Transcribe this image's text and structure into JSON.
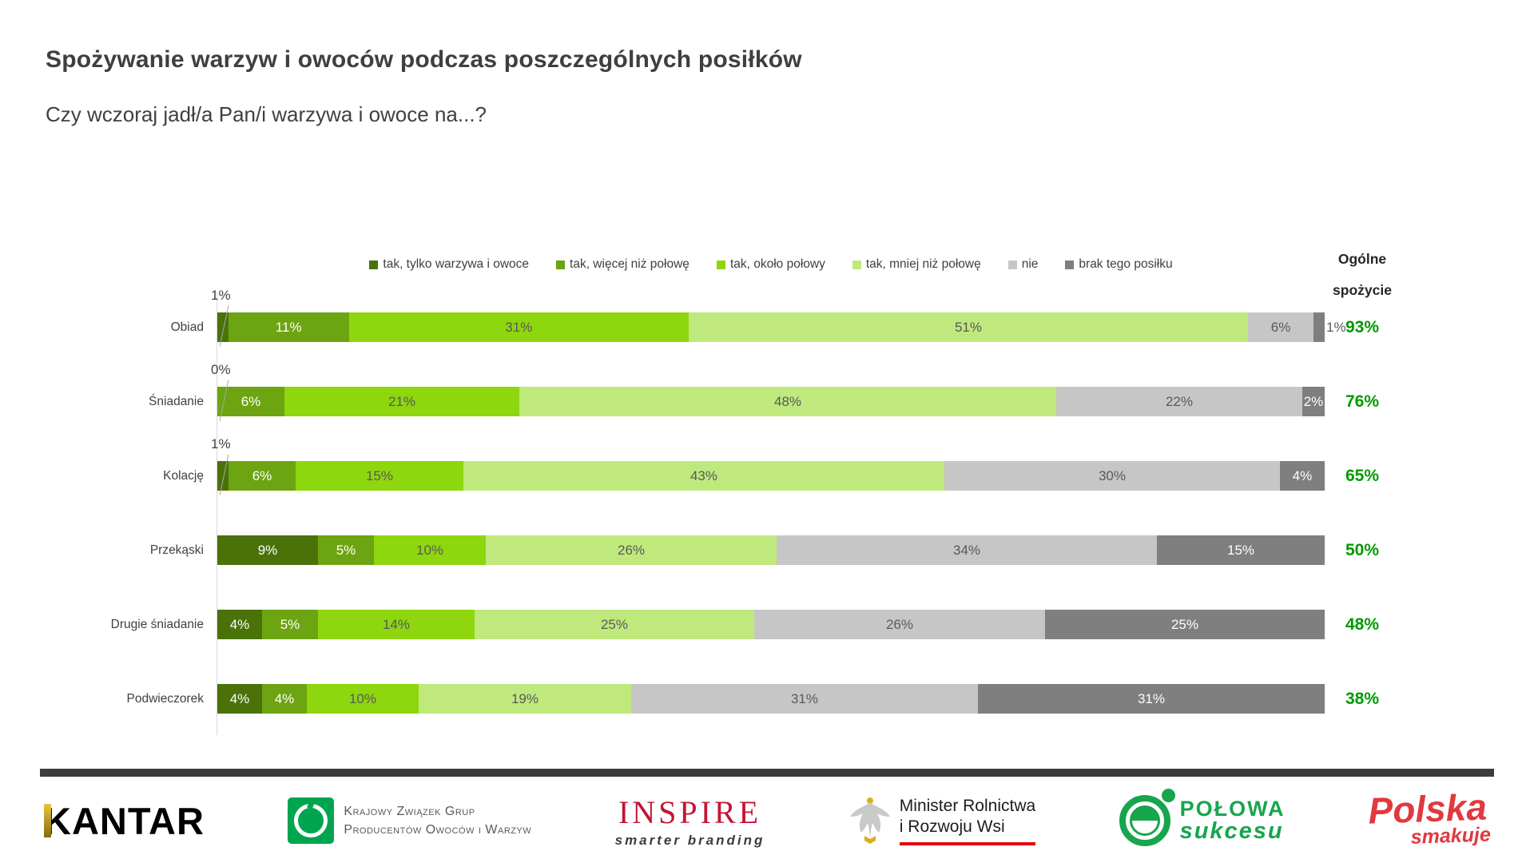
{
  "header": {
    "title": "Spożywanie warzyw i owoców podczas poszczególnych posiłków",
    "subtitle": "Czy wczoraj jadł/a Pan/i warzywa i owoce na...?"
  },
  "totals_header": {
    "line1": "Ogólne",
    "line2": "spożycie"
  },
  "chart_data": {
    "type": "bar",
    "stacked": true,
    "orientation": "horizontal",
    "unit": "%",
    "legend_position": "top",
    "grid": false,
    "xlim": [
      0,
      100
    ],
    "categories": [
      "Obiad",
      "Śniadanie",
      "Kolację",
      "Przekąski",
      "Drugie śniadanie",
      "Podwieczorek"
    ],
    "series": [
      {
        "name": "tak, tylko warzywa i owoce",
        "color": "#4a7209",
        "values": [
          1,
          0,
          1,
          9,
          4,
          4
        ]
      },
      {
        "name": "tak, więcej niż połowę",
        "color": "#6da411",
        "values": [
          11,
          6,
          6,
          5,
          5,
          4
        ]
      },
      {
        "name": "tak, około połowy",
        "color": "#8ed60e",
        "values": [
          31,
          21,
          15,
          10,
          14,
          10
        ]
      },
      {
        "name": "tak, mniej niż połowę",
        "color": "#bfe97d",
        "values": [
          51,
          48,
          43,
          26,
          25,
          19
        ]
      },
      {
        "name": "nie",
        "color": "#c6c6c6",
        "values": [
          6,
          22,
          30,
          34,
          26,
          31
        ]
      },
      {
        "name": "brak tego posiłku",
        "color": "#7f7f7f",
        "values": [
          1,
          2,
          4,
          15,
          25,
          31
        ]
      }
    ],
    "totals_label": "Ogólne spożycie",
    "totals": [
      93,
      76,
      65,
      50,
      48,
      38
    ],
    "totals_color": "#009a00",
    "label_color_inside_light": "#ffffff",
    "label_color_inside_dark": "#595959"
  },
  "footer": {
    "kantar": {
      "name": "KANTAR",
      "accent": "#c9a227"
    },
    "kzg": {
      "line1": "Krajowy Związek Grup",
      "line2": "Producentów Owoców i Warzyw",
      "accent": "#00a550"
    },
    "inspire": {
      "name": "INSPIRE",
      "tagline": "smarter branding",
      "accent": "#c41432"
    },
    "minister": {
      "line1": "Minister Rolnictwa",
      "line2": "i Rozwoju Wsi",
      "accent": "#e30613"
    },
    "polowa": {
      "line1": "POŁOWA",
      "line2": "sukcesu",
      "accent": "#17a54e"
    },
    "polska": {
      "line1": "Polska",
      "line2": "smakuje",
      "accent": "#e0393f"
    }
  }
}
